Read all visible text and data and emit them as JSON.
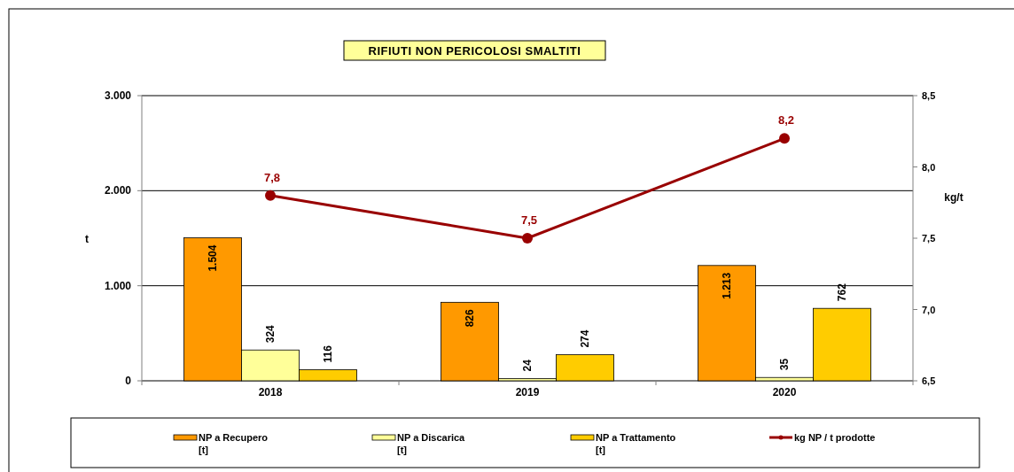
{
  "chart_data": {
    "type": "bar",
    "title": "RIFIUTI NON PERICOLOSI SMALTITI",
    "ylabel": "t",
    "y2label": "kg/t",
    "categories": [
      "2018",
      "2019",
      "2020"
    ],
    "series": [
      {
        "name": "NP a Recupero\n[t]",
        "color": "#ff9900",
        "values": [
          1504,
          826,
          1213
        ],
        "value_labels": [
          "1.504",
          "826",
          "1.213"
        ]
      },
      {
        "name": "NP a Discarica\n[t]",
        "color": "#ffff99",
        "values": [
          324,
          24,
          35
        ],
        "value_labels": [
          "324",
          "24",
          "35"
        ]
      },
      {
        "name": "NP a Trattamento\n[t]",
        "color": "#ffcc00",
        "values": [
          116,
          274,
          762
        ],
        "value_labels": [
          "116",
          "274",
          "762"
        ]
      },
      {
        "name": "kg NP / t prodotte",
        "type": "line",
        "axis": "y2",
        "color": "#990000",
        "marker": "circle",
        "values": [
          7.8,
          7.5,
          8.2
        ],
        "value_labels": [
          "7,8",
          "7,5",
          "8,2"
        ]
      }
    ],
    "ylim": [
      0,
      3000
    ],
    "yticks": [
      {
        "value": 0,
        "label": "0"
      },
      {
        "value": 1000,
        "label": "1.000"
      },
      {
        "value": 2000,
        "label": "2.000"
      },
      {
        "value": 3000,
        "label": "3.000"
      }
    ],
    "y2lim": [
      6.5,
      8.5
    ],
    "y2ticks": [
      {
        "value": 6.5,
        "label": "6,5"
      },
      {
        "value": 7,
        "label": "7,0"
      },
      {
        "value": 7.5,
        "label": "7,5"
      },
      {
        "value": 8,
        "label": "8,0"
      },
      {
        "value": 8.5,
        "label": "8,5"
      }
    ],
    "grid": "y",
    "legend": "bottom"
  }
}
